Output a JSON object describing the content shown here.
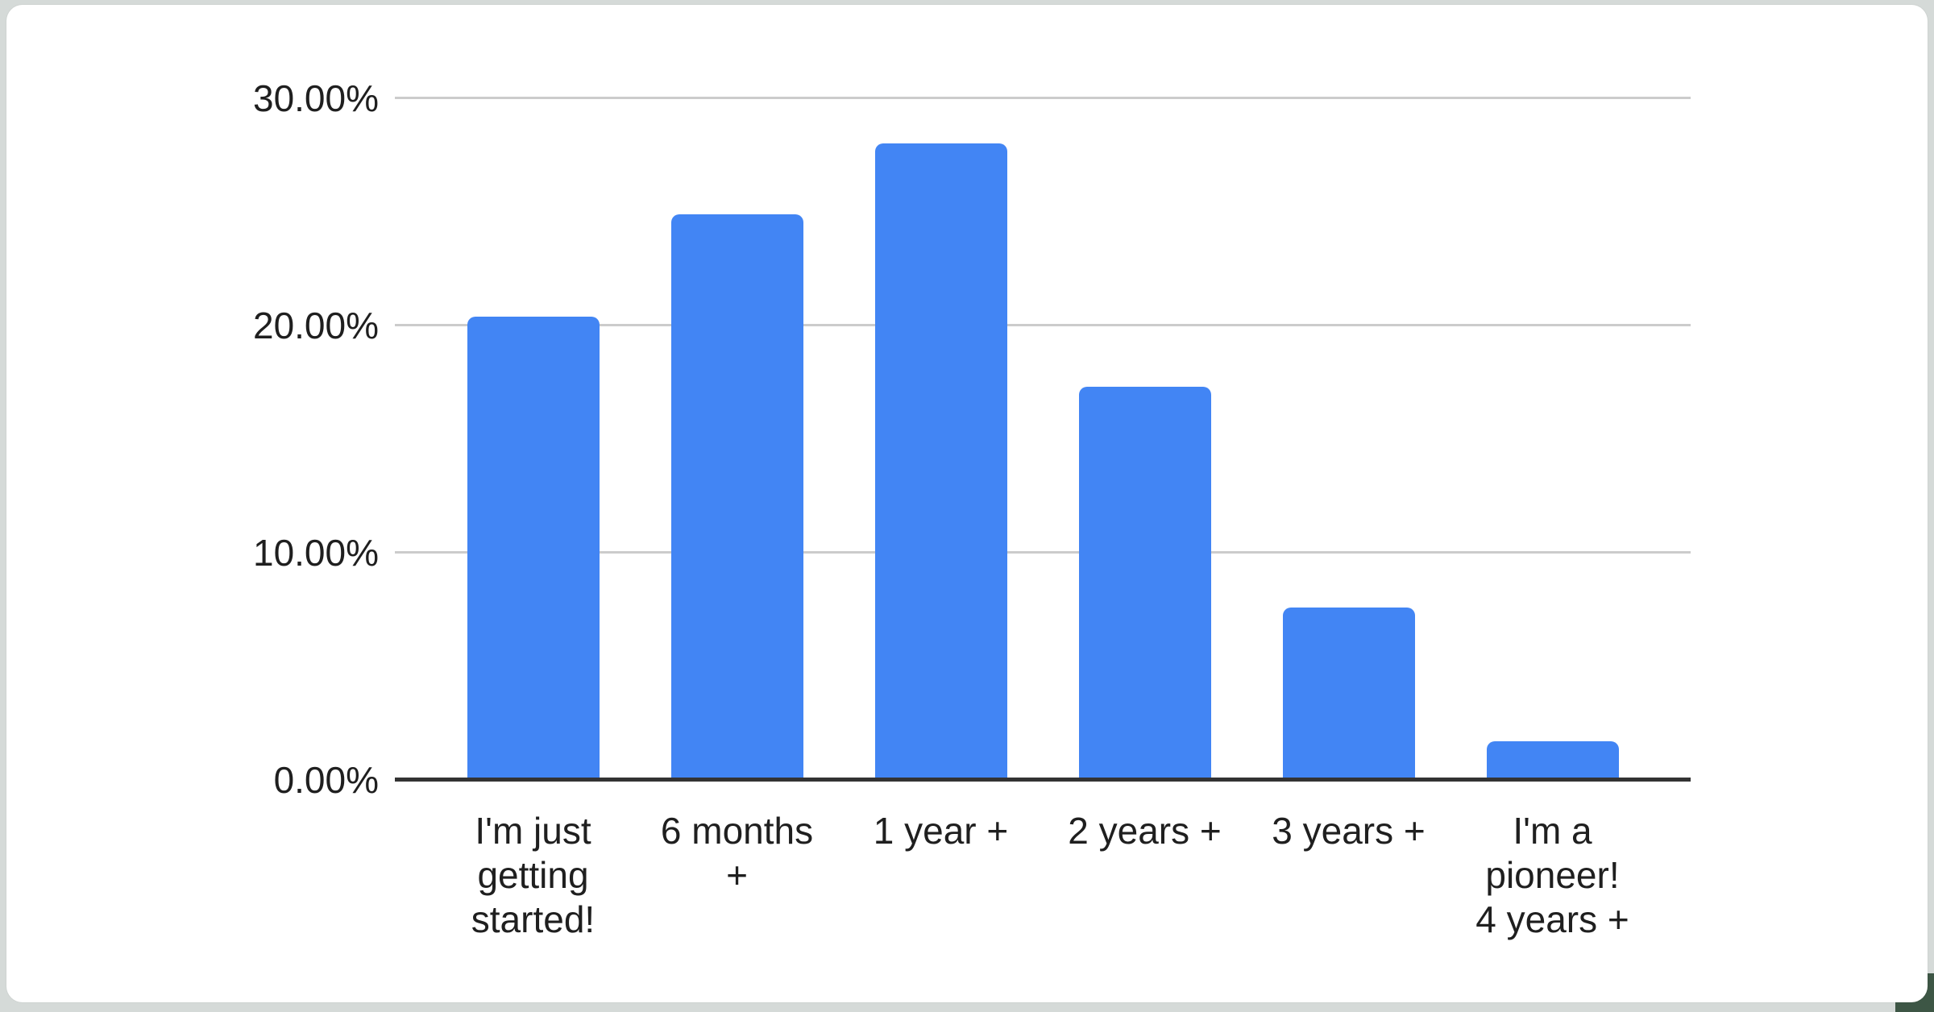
{
  "page": {
    "background_color": "#d5dad8",
    "card_background": "#ffffff",
    "corner_accent_color": "#3d5645"
  },
  "chart_data": {
    "type": "bar",
    "title": "",
    "categories": [
      "I'm just\ngetting\nstarted!",
      "6 months\n+",
      "1 year +",
      "2 years +",
      "3 years +",
      "I'm a\npioneer!\n4 years +"
    ],
    "values": [
      20.4,
      24.9,
      28.0,
      17.3,
      7.6,
      1.7
    ],
    "yticks": [
      {
        "value": 0,
        "label": "0.00%"
      },
      {
        "value": 10,
        "label": "10.00%"
      },
      {
        "value": 20,
        "label": "20.00%"
      },
      {
        "value": 30,
        "label": "30.00%"
      }
    ],
    "ylim": [
      0,
      30
    ],
    "xlabel": "",
    "ylabel": "",
    "grid": true,
    "legend_position": "none",
    "bar_color": "#4285f4",
    "gridline_color": "#cccccc",
    "axis_line_color": "#333333",
    "text_color": "#1f1f1f"
  }
}
